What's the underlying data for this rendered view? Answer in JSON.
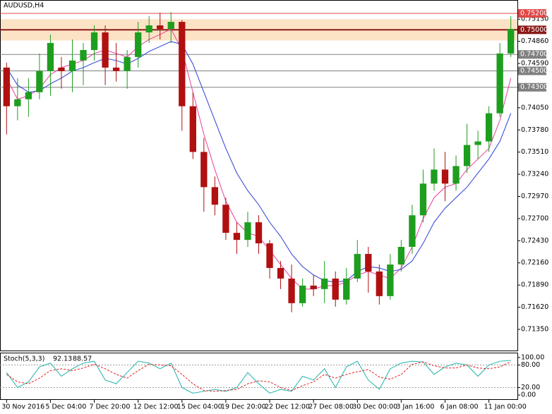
{
  "chart_data": [
    {
      "type": "candlestick",
      "title": "AUDUSD,H4",
      "xlim": [
        -0.6,
        46.6
      ],
      "xticks": [
        {
          "value": 0,
          "label": "30 Nov 2016"
        },
        {
          "value": 4,
          "label": "5 Dec 04:00"
        },
        {
          "value": 8,
          "label": "7 Dec 20:00"
        },
        {
          "value": 12,
          "label": "12 Dec 12:00"
        },
        {
          "value": 16,
          "label": "15 Dec 04:00"
        },
        {
          "value": 20,
          "label": "19 Dec 20:00"
        },
        {
          "value": 24,
          "label": "22 Dec 12:00"
        },
        {
          "value": 28,
          "label": "27 Dec 08:00"
        },
        {
          "value": 32,
          "label": "30 Dec 00:00"
        },
        {
          "value": 36,
          "label": "3 Jan 16:00"
        },
        {
          "value": 40,
          "label": "6 Jan 08:00"
        },
        {
          "value": 44,
          "label": "11 Jan 00:00"
        }
      ],
      "ylim": [
        0.71092,
        0.75355
      ],
      "yticks": [
        {
          "value": 0.7513,
          "label": "0.75130"
        },
        {
          "value": 0.7486,
          "label": "0.74860"
        },
        {
          "value": 0.7459,
          "label": "0.74590"
        },
        {
          "value": 0.7405,
          "label": "0.74050"
        },
        {
          "value": 0.7378,
          "label": "0.73780"
        },
        {
          "value": 0.7351,
          "label": "0.73510"
        },
        {
          "value": 0.7324,
          "label": "0.73240"
        },
        {
          "value": 0.7297,
          "label": "0.72970"
        },
        {
          "value": 0.727,
          "label": "0.72700"
        },
        {
          "value": 0.7243,
          "label": "0.72430"
        },
        {
          "value": 0.7216,
          "label": "0.72160"
        },
        {
          "value": 0.7189,
          "label": "0.71890"
        },
        {
          "value": 0.7162,
          "label": "0.71620"
        },
        {
          "value": 0.7135,
          "label": "0.71350"
        }
      ],
      "up_color": "#1e9e1e",
      "down_color": "#b01010",
      "open": [
        0.7454,
        0.74069,
        0.74154,
        0.7424,
        0.74497,
        0.7454,
        0.74497,
        0.74626,
        0.74754,
        0.74969,
        0.7454,
        0.74497,
        0.74669,
        0.74969,
        0.75054,
        0.75011,
        0.75097,
        0.74069,
        0.73512,
        0.73083,
        0.72869,
        0.72526,
        0.7244,
        0.72655,
        0.72398,
        0.72098,
        0.71969,
        0.71669,
        0.71883,
        0.71841,
        0.71969,
        0.71712,
        0.71969,
        0.72269,
        0.72055,
        0.71755,
        0.7214,
        0.72355,
        0.7274,
        0.73126,
        0.73297,
        0.73126,
        0.7334,
        0.73597,
        0.7364,
        0.73983,
        0.74712
      ],
      "high": [
        0.746,
        0.74412,
        0.74412,
        0.74712,
        0.74943,
        0.74669,
        0.74883,
        0.7484,
        0.75054,
        0.75054,
        0.7484,
        0.74754,
        0.75097,
        0.75166,
        0.75209,
        0.75217,
        0.7512,
        0.7424,
        0.73683,
        0.73212,
        0.72955,
        0.72655,
        0.72783,
        0.7274,
        0.7244,
        0.72183,
        0.7214,
        0.71969,
        0.72012,
        0.72183,
        0.72055,
        0.72098,
        0.7244,
        0.72355,
        0.7214,
        0.72269,
        0.7244,
        0.72869,
        0.73297,
        0.73555,
        0.73512,
        0.73469,
        0.73855,
        0.73769,
        0.74069,
        0.7484,
        0.75166
      ],
      "low": [
        0.73726,
        0.73897,
        0.7394,
        0.74154,
        0.74197,
        0.74283,
        0.7424,
        0.74326,
        0.74626,
        0.74326,
        0.74369,
        0.74283,
        0.7454,
        0.7484,
        0.74883,
        0.7484,
        0.73769,
        0.73426,
        0.72783,
        0.7274,
        0.7244,
        0.72269,
        0.72355,
        0.72269,
        0.71969,
        0.71841,
        0.71558,
        0.71626,
        0.71755,
        0.71669,
        0.71626,
        0.71652,
        0.71926,
        0.71798,
        0.71652,
        0.71712,
        0.72055,
        0.72269,
        0.72655,
        0.7304,
        0.72912,
        0.7304,
        0.73255,
        0.73426,
        0.73512,
        0.7394,
        0.74669
      ],
      "close": [
        0.74069,
        0.74154,
        0.7424,
        0.74497,
        0.7484,
        0.74497,
        0.74626,
        0.74754,
        0.74969,
        0.7454,
        0.74497,
        0.74669,
        0.74969,
        0.75054,
        0.75011,
        0.75097,
        0.74069,
        0.73512,
        0.73083,
        0.72869,
        0.72526,
        0.7244,
        0.72655,
        0.72398,
        0.72098,
        0.71969,
        0.71669,
        0.71883,
        0.71841,
        0.71969,
        0.71712,
        0.71969,
        0.72269,
        0.72055,
        0.71755,
        0.7214,
        0.72355,
        0.7274,
        0.73126,
        0.73297,
        0.73126,
        0.7334,
        0.73597,
        0.7364,
        0.73983,
        0.74712,
        0.75011
      ],
      "overlays": [
        {
          "color": "#e8409a",
          "values": [
            0.74412,
            0.74154,
            0.74197,
            0.74283,
            0.74454,
            0.7454,
            0.74583,
            0.74626,
            0.74712,
            0.74754,
            0.74712,
            0.74669,
            0.74797,
            0.74883,
            0.74943,
            0.75011,
            0.74754,
            0.7424,
            0.73726,
            0.73297,
            0.72912,
            0.72655,
            0.72526,
            0.72483,
            0.72312,
            0.7214,
            0.71969,
            0.71841,
            0.71841,
            0.71883,
            0.71883,
            0.71926,
            0.72012,
            0.72055,
            0.72012,
            0.71969,
            0.72098,
            0.72355,
            0.72698,
            0.72955,
            0.73083,
            0.73126,
            0.73297,
            0.73426,
            0.73555,
            0.73897,
            0.74412
          ]
        },
        {
          "color": "#2a3fd6",
          "values": [
            0.7454,
            0.74326,
            0.7424,
            0.74257,
            0.74343,
            0.74412,
            0.74497,
            0.7454,
            0.746,
            0.74652,
            0.74626,
            0.74583,
            0.74652,
            0.74737,
            0.74797,
            0.74857,
            0.74823,
            0.74583,
            0.7424,
            0.73897,
            0.73555,
            0.73255,
            0.7304,
            0.72869,
            0.72655,
            0.72483,
            0.72269,
            0.72115,
            0.72012,
            0.71943,
            0.71926,
            0.71943,
            0.72055,
            0.72115,
            0.72098,
            0.72055,
            0.72081,
            0.72183,
            0.72398,
            0.72655,
            0.72826,
            0.72955,
            0.73083,
            0.73255,
            0.73426,
            0.7364,
            0.73983
          ]
        }
      ],
      "zone": [
        0.7487,
        0.7513
      ],
      "zone_color": "#fde3c6",
      "levels": [
        {
          "value": 0.752,
          "label": "0.75200",
          "color": "#e04848"
        },
        {
          "value": 0.75,
          "label": "0.75000",
          "color": "#8b1a1a"
        },
        {
          "value": 0.747,
          "label": "0.74700",
          "color": "#808080"
        },
        {
          "value": 0.745,
          "label": "0.74500",
          "color": "#808080"
        },
        {
          "value": 0.743,
          "label": "0.74300",
          "color": "#808080"
        }
      ]
    },
    {
      "type": "line",
      "title": "Stoch(5,3,3)",
      "ylim": [
        -11,
        111
      ],
      "yticks": [
        {
          "value": 100,
          "label": "100.00"
        },
        {
          "value": 80,
          "label": "80.00"
        },
        {
          "value": 20,
          "label": "20.00"
        },
        {
          "value": 0,
          "label": "0.00"
        }
      ],
      "levels": [
        80,
        20
      ],
      "series": [
        {
          "color": "#20b2aa",
          "values": [
            60,
            20,
            35,
            75,
            85,
            50,
            70,
            85,
            90,
            40,
            30,
            60,
            90,
            85,
            70,
            85,
            20,
            5,
            10,
            15,
            10,
            20,
            60,
            30,
            5,
            15,
            10,
            50,
            40,
            70,
            20,
            75,
            90,
            40,
            15,
            70,
            85,
            90,
            88,
            55,
            75,
            85,
            80,
            50,
            80,
            90,
            92.13
          ]
        },
        {
          "color": "#e02020",
          "dashed": true,
          "values": [
            55,
            35,
            30,
            45,
            65,
            70,
            65,
            72,
            82,
            70,
            55,
            45,
            65,
            82,
            80,
            78,
            55,
            30,
            12,
            10,
            12,
            15,
            30,
            38,
            35,
            20,
            12,
            25,
            35,
            55,
            45,
            55,
            62,
            68,
            48,
            42,
            55,
            82,
            88,
            78,
            72,
            72,
            80,
            72,
            70,
            75,
            88.57
          ]
        }
      ]
    }
  ]
}
